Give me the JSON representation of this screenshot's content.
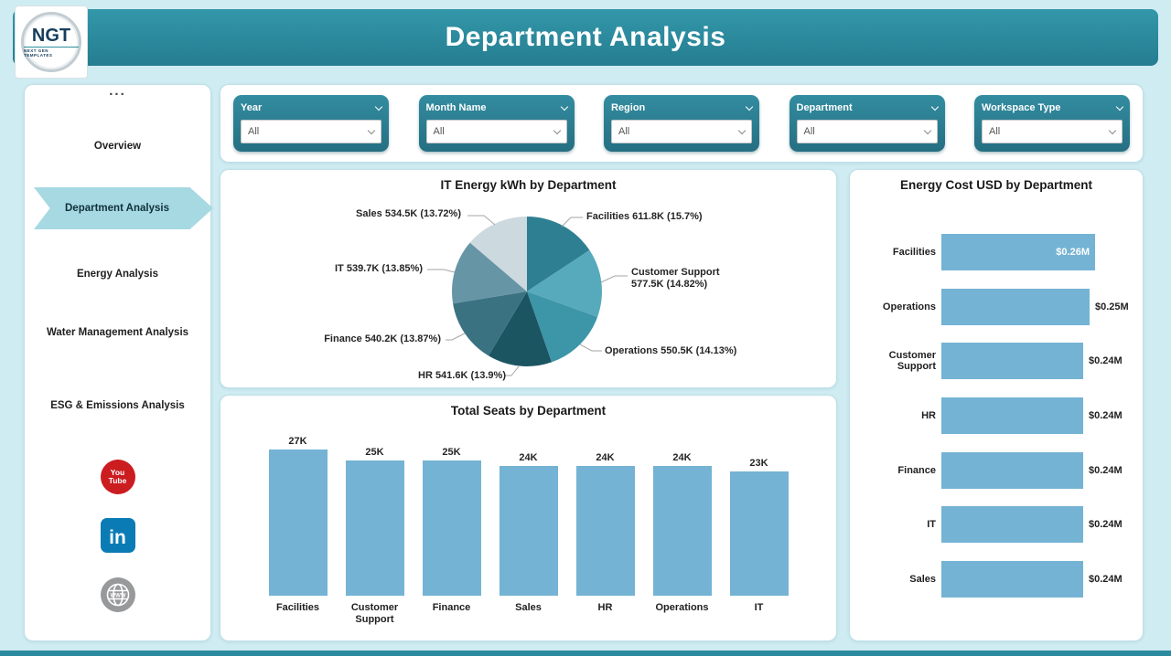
{
  "header": {
    "title": "Department Analysis",
    "logo_text": "NGT",
    "logo_sub": "NEXT GEN TEMPLATES"
  },
  "sidebar": {
    "menu_dots": "...",
    "items": [
      {
        "label": "Overview",
        "active": false
      },
      {
        "label": "Department Analysis",
        "active": true
      },
      {
        "label": "Energy Analysis",
        "active": false
      },
      {
        "label": "Water Management Analysis",
        "active": false
      },
      {
        "label": "ESG & Emissions Analysis",
        "active": false
      }
    ],
    "social": [
      {
        "name": "youtube",
        "text_top": "You",
        "text_bottom": "Tube"
      },
      {
        "name": "linkedin",
        "text": "in"
      },
      {
        "name": "website",
        "text": "WWW"
      }
    ]
  },
  "filters": [
    {
      "label": "Year",
      "value": "All"
    },
    {
      "label": "Month Name",
      "value": "All"
    },
    {
      "label": "Region",
      "value": "All"
    },
    {
      "label": "Department",
      "value": "All"
    },
    {
      "label": "Workspace Type",
      "value": "All"
    }
  ],
  "chart_data": [
    {
      "type": "pie",
      "title": "IT Energy kWh by Department",
      "labels": [
        "Facilities",
        "Customer Support",
        "Operations",
        "HR",
        "Finance",
        "IT",
        "Sales"
      ],
      "values_kwh_k": [
        611.8,
        577.5,
        550.5,
        541.6,
        540.2,
        539.7,
        534.5
      ],
      "percents": [
        15.7,
        14.82,
        14.13,
        13.9,
        13.87,
        13.85,
        13.72
      ],
      "data_labels": [
        "Facilities 611.8K (15.7%)",
        "Customer Support 577.5K (14.82%)",
        "Operations 550.5K (14.13%)",
        "HR 541.6K (13.9%)",
        "Finance 540.2K (13.87%)",
        "IT 539.7K (13.85%)",
        "Sales 534.5K (13.72%)"
      ],
      "colors": [
        "#2e7f91",
        "#57aabb",
        "#3d95a8",
        "#1b5562",
        "#3a7282",
        "#6695a6",
        "#ccd9de"
      ]
    },
    {
      "type": "bar",
      "title": "Total Seats by Department",
      "categories": [
        "Facilities",
        "Customer Support",
        "Finance",
        "Sales",
        "HR",
        "Operations",
        "IT"
      ],
      "values": [
        27,
        25,
        25,
        24,
        24,
        24,
        23
      ],
      "value_labels": [
        "27K",
        "25K",
        "25K",
        "24K",
        "24K",
        "24K",
        "23K"
      ],
      "ylim": [
        0,
        27
      ],
      "bar_color": "#74b3d4"
    },
    {
      "type": "bar-horizontal",
      "title": "Energy Cost USD by Department",
      "categories": [
        "Facilities",
        "Operations",
        "Customer Support",
        "HR",
        "Finance",
        "IT",
        "Sales"
      ],
      "values": [
        0.26,
        0.25,
        0.24,
        0.24,
        0.24,
        0.24,
        0.24
      ],
      "value_labels": [
        "$0.26M",
        "$0.25M",
        "$0.24M",
        "$0.24M",
        "$0.24M",
        "$0.24M",
        "$0.24M"
      ],
      "label_positions": [
        "inside",
        "outside",
        "outside",
        "outside",
        "outside",
        "outside",
        "outside"
      ],
      "xlim": [
        0,
        0.26
      ],
      "bar_color": "#74b3d4"
    }
  ],
  "colors": {
    "header_teal": "#2b8a9d",
    "slicer_teal": "#2c8193",
    "bar_blue": "#74b3d4",
    "active_nav": "#a6d9e2",
    "page_bg": "#cfecf2"
  }
}
